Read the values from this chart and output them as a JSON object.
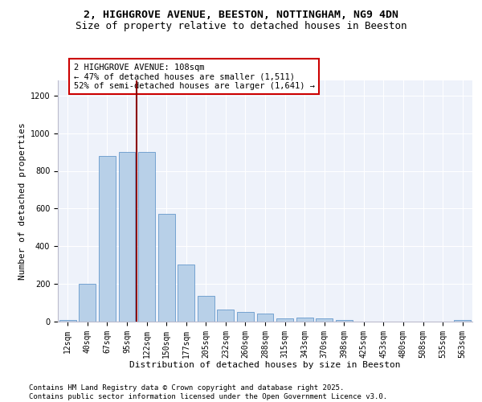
{
  "title_line1": "2, HIGHGROVE AVENUE, BEESTON, NOTTINGHAM, NG9 4DN",
  "title_line2": "Size of property relative to detached houses in Beeston",
  "xlabel": "Distribution of detached houses by size in Beeston",
  "ylabel": "Number of detached properties",
  "bar_labels": [
    "12sqm",
    "40sqm",
    "67sqm",
    "95sqm",
    "122sqm",
    "150sqm",
    "177sqm",
    "205sqm",
    "232sqm",
    "260sqm",
    "288sqm",
    "315sqm",
    "343sqm",
    "370sqm",
    "398sqm",
    "425sqm",
    "453sqm",
    "480sqm",
    "508sqm",
    "535sqm",
    "563sqm"
  ],
  "bar_heights": [
    10,
    200,
    880,
    900,
    900,
    570,
    305,
    135,
    62,
    50,
    42,
    15,
    20,
    15,
    10,
    2,
    0,
    2,
    0,
    2,
    10
  ],
  "bar_color": "#b8d0e8",
  "bar_edge_color": "#6699cc",
  "bar_width": 0.85,
  "vline_color": "#8b0000",
  "annotation_text_line1": "2 HIGHGROVE AVENUE: 108sqm",
  "annotation_text_line2": "← 47% of detached houses are smaller (1,511)",
  "annotation_text_line3": "52% of semi-detached houses are larger (1,641) →",
  "ylim": [
    0,
    1280
  ],
  "yticks": [
    0,
    200,
    400,
    600,
    800,
    1000,
    1200
  ],
  "background_color": "#eef2fa",
  "grid_color": "#ffffff",
  "footer_text": "Contains HM Land Registry data © Crown copyright and database right 2025.\nContains public sector information licensed under the Open Government Licence v3.0.",
  "title_fontsize": 9.5,
  "subtitle_fontsize": 9,
  "axis_label_fontsize": 8,
  "tick_fontsize": 7,
  "annotation_fontsize": 7.5,
  "footer_fontsize": 6.5
}
